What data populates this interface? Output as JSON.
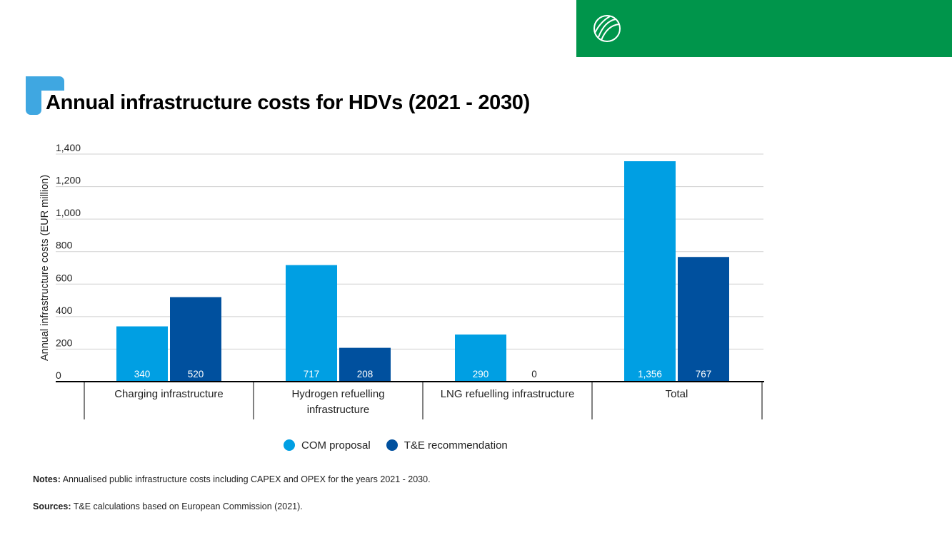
{
  "title": "Annual infrastructure costs for HDVs (2021 - 2030)",
  "colors": {
    "header": "#00954b",
    "accent": "#3fa7e1",
    "com": "#009fe3",
    "te": "#00509e"
  },
  "logo_icon": "leaf-globe-icon",
  "chart_data": {
    "type": "bar",
    "title": "Annual infrastructure costs for HDVs (2021 - 2030)",
    "ylabel": "Annual infrastructure costs (EUR million)",
    "xlabel": "",
    "ylim": [
      0,
      1400
    ],
    "yticks": [
      {
        "value": 0,
        "label": "0"
      },
      {
        "value": 200,
        "label": "200"
      },
      {
        "value": 400,
        "label": "400"
      },
      {
        "value": 600,
        "label": "600"
      },
      {
        "value": 800,
        "label": "800"
      },
      {
        "value": 1000,
        "label": "1,000"
      },
      {
        "value": 1200,
        "label": "1,200"
      },
      {
        "value": 1400,
        "label": "1,400"
      }
    ],
    "grid": true,
    "legend_position": "bottom",
    "categories": [
      [
        "Charging infrastructure"
      ],
      [
        "Hydrogen refuelling",
        "infrastructure"
      ],
      [
        "LNG refuelling infrastructure"
      ],
      [
        "Total"
      ]
    ],
    "series": [
      {
        "name": "COM proposal",
        "color": "#009fe3",
        "values": [
          340,
          717,
          290,
          1356
        ],
        "labels": [
          "340",
          "717",
          "290",
          "1,356"
        ]
      },
      {
        "name": "T&E recommendation",
        "color": "#00509e",
        "values": [
          520,
          208,
          0,
          767
        ],
        "labels": [
          "520",
          "208",
          "0",
          "767"
        ]
      }
    ]
  },
  "notes": {
    "notes_label": "Notes:",
    "notes_text": " Annualised public infrastructure costs including CAPEX and OPEX for the years 2021 - 2030.",
    "sources_label": "Sources:",
    "sources_text": " T&E calculations based on European Commission (2021)."
  }
}
